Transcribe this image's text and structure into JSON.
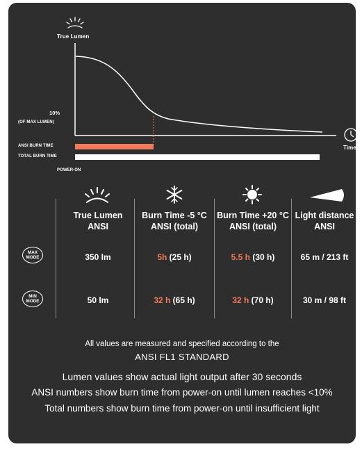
{
  "chart": {
    "y_label": "True Lumen",
    "ten_percent": "10%",
    "ten_percent_sub": "(OF MAX LUMEN)",
    "x_label": "Time",
    "ansi_bar_label": "ANSI BURN TIME",
    "total_bar_label": "TOTAL BURN TIME",
    "power_on_label": "POWER-ON",
    "colors": {
      "ansi_bar": "#f07a5a",
      "total_bar": "#ffffff",
      "background": "#2e2e2e"
    }
  },
  "table": {
    "headers": [
      {
        "line1": "True Lumen",
        "line2": "ANSI",
        "icon": "sun-rays-icon"
      },
      {
        "line1": "Burn Time -5 °C",
        "line2": "ANSI (total)",
        "icon": "snowflake-icon"
      },
      {
        "line1": "Burn Time +20 °C",
        "line2": "ANSI (total)",
        "icon": "sun-icon"
      },
      {
        "line1": "Light distance",
        "line2": "ANSI",
        "icon": "beam-icon"
      }
    ],
    "rows": [
      {
        "mode_line1": "MAX",
        "mode_line2": "MODE",
        "lumen": "350 lm",
        "cold_ansi": "5h",
        "cold_total": "(25 h)",
        "warm_ansi": "5.5 h",
        "warm_total": "(30 h)",
        "distance": "65 m / 213 ft"
      },
      {
        "mode_line1": "MIN",
        "mode_line2": "MODE",
        "lumen": "50 lm",
        "cold_ansi": "32 h",
        "cold_total": "(65 h)",
        "warm_ansi": "32 h",
        "warm_total": "(70 h)",
        "distance": "30 m / 98 ft"
      }
    ]
  },
  "footer": {
    "line1": "All values are measured and specified according to the",
    "line2": "ANSI FL1 STANDARD",
    "line3": "Lumen values show actual light output after 30 seconds",
    "line4": "ANSI numbers show burn time from power-on until lumen reaches <10%",
    "line5": "Total numbers show burn time from power-on until insufficient light"
  }
}
